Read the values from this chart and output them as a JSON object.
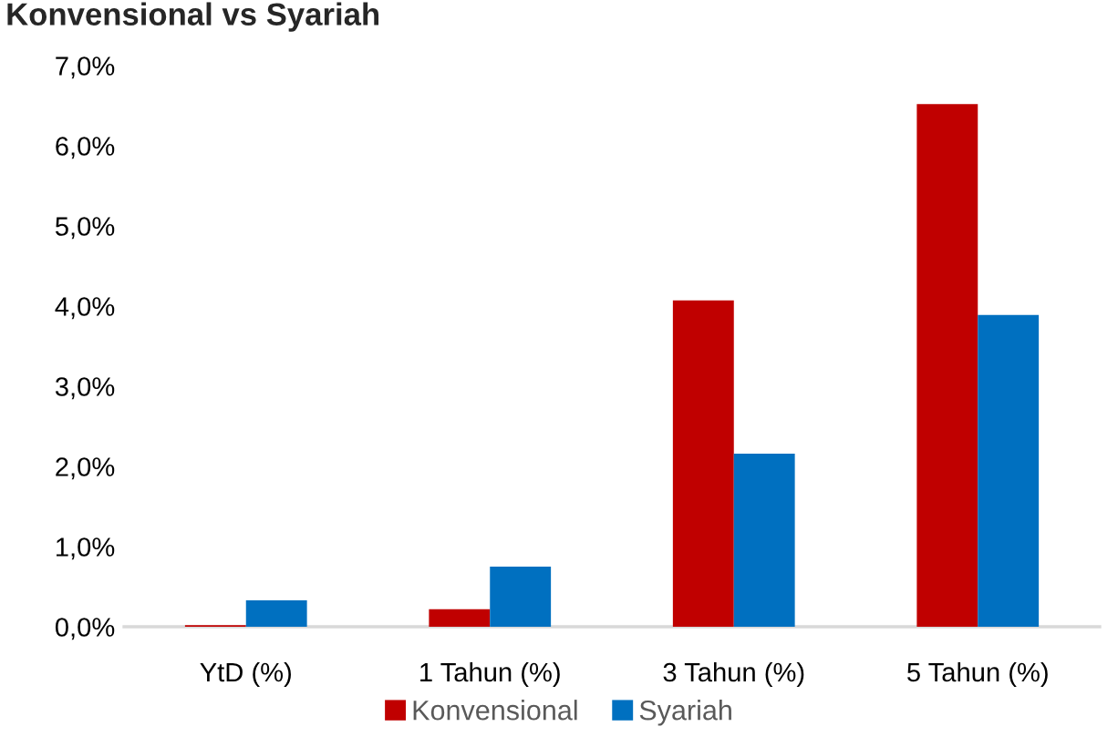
{
  "chart_data": {
    "type": "bar",
    "title": "Konvensional vs Syariah",
    "categories": [
      "YtD (%)",
      "1 Tahun (%)",
      "3 Tahun (%)",
      "5 Tahun (%)"
    ],
    "series": [
      {
        "name": "Konvensional",
        "color": "#c00000",
        "values": [
          0.02,
          0.22,
          4.07,
          6.52
        ]
      },
      {
        "name": "Syariah",
        "color": "#0070c0",
        "values": [
          0.33,
          0.75,
          2.16,
          3.89
        ]
      }
    ],
    "ylim": [
      0,
      7
    ],
    "yticks": [
      {
        "value": 0,
        "label": "0,0%"
      },
      {
        "value": 1,
        "label": "1,0%"
      },
      {
        "value": 2,
        "label": "2,0%"
      },
      {
        "value": 3,
        "label": "3,0%"
      },
      {
        "value": 4,
        "label": "4,0%"
      },
      {
        "value": 5,
        "label": "5,0%"
      },
      {
        "value": 6,
        "label": "6,0%"
      },
      {
        "value": 7,
        "label": "7,0%"
      }
    ],
    "legend": "bottom"
  }
}
